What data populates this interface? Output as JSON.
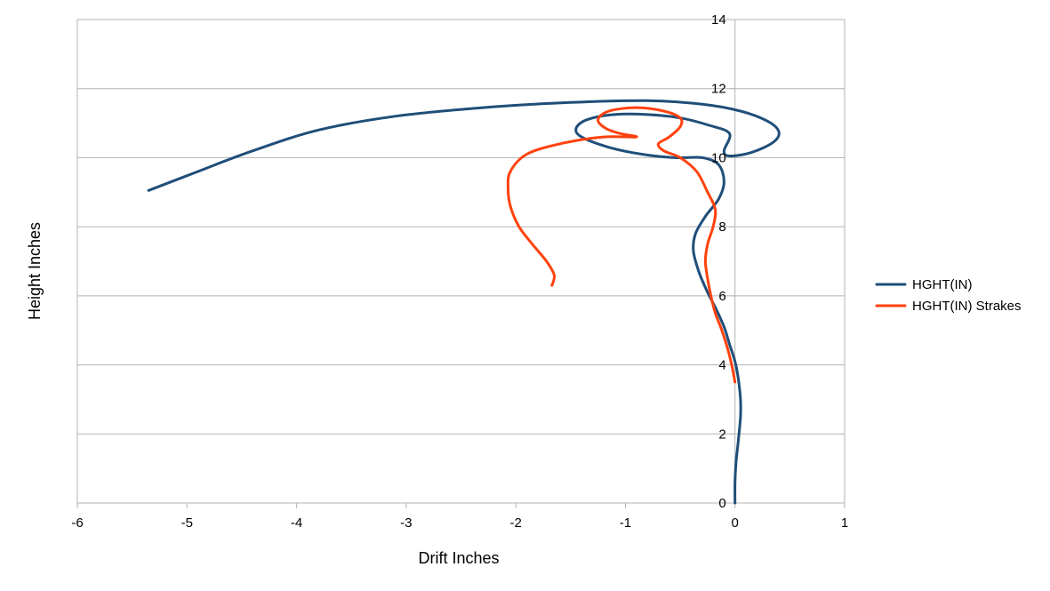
{
  "chart_data": {
    "type": "scatter",
    "title": "",
    "xlabel": "Drift Inches",
    "ylabel": "Height Inches",
    "xlim": [
      -6,
      1
    ],
    "ylim": [
      0,
      14
    ],
    "x_ticks": [
      "-6",
      "-5",
      "-4",
      "-3",
      "-2",
      "-1",
      "0",
      "1"
    ],
    "y_ticks": [
      "0",
      "2",
      "4",
      "6",
      "8",
      "10",
      "12",
      "14"
    ],
    "grid": "horizontal",
    "legend_position": "right",
    "series": [
      {
        "name": "HGHT(IN)",
        "color": "#1f4e79",
        "points": [
          [
            0.0,
            0.0
          ],
          [
            0.0,
            0.6
          ],
          [
            0.01,
            1.2
          ],
          [
            0.03,
            1.8
          ],
          [
            0.05,
            2.5
          ],
          [
            0.05,
            3.0
          ],
          [
            0.03,
            3.6
          ],
          [
            0.0,
            4.1
          ],
          [
            -0.05,
            4.6
          ],
          [
            -0.1,
            5.1
          ],
          [
            -0.17,
            5.6
          ],
          [
            -0.25,
            6.1
          ],
          [
            -0.33,
            6.7
          ],
          [
            -0.38,
            7.3
          ],
          [
            -0.36,
            7.8
          ],
          [
            -0.27,
            8.3
          ],
          [
            -0.15,
            8.8
          ],
          [
            -0.1,
            9.3
          ],
          [
            -0.15,
            9.8
          ],
          [
            -0.3,
            10.0
          ],
          [
            -0.55,
            10.0
          ],
          [
            -0.85,
            10.1
          ],
          [
            -1.15,
            10.3
          ],
          [
            -1.4,
            10.6
          ],
          [
            -1.45,
            10.85
          ],
          [
            -1.35,
            11.1
          ],
          [
            -1.1,
            11.25
          ],
          [
            -0.8,
            11.25
          ],
          [
            -0.5,
            11.15
          ],
          [
            -0.25,
            10.95
          ],
          [
            -0.05,
            10.7
          ],
          [
            -0.1,
            10.2
          ],
          [
            -0.05,
            10.05
          ],
          [
            0.15,
            10.15
          ],
          [
            0.35,
            10.45
          ],
          [
            0.4,
            10.75
          ],
          [
            0.3,
            11.05
          ],
          [
            0.05,
            11.35
          ],
          [
            -0.3,
            11.55
          ],
          [
            -0.8,
            11.65
          ],
          [
            -1.5,
            11.6
          ],
          [
            -2.3,
            11.45
          ],
          [
            -3.1,
            11.2
          ],
          [
            -3.8,
            10.8
          ],
          [
            -4.4,
            10.2
          ],
          [
            -4.9,
            9.6
          ],
          [
            -5.35,
            9.05
          ]
        ]
      },
      {
        "name": "HGHT(IN) Strakes",
        "color": "#ff420e",
        "points": [
          [
            0.0,
            3.5
          ],
          [
            -0.03,
            4.0
          ],
          [
            -0.07,
            4.5
          ],
          [
            -0.12,
            5.0
          ],
          [
            -0.18,
            5.5
          ],
          [
            -0.22,
            6.0
          ],
          [
            -0.25,
            6.5
          ],
          [
            -0.27,
            7.0
          ],
          [
            -0.25,
            7.5
          ],
          [
            -0.2,
            8.0
          ],
          [
            -0.18,
            8.5
          ],
          [
            -0.25,
            9.0
          ],
          [
            -0.35,
            9.6
          ],
          [
            -0.5,
            10.0
          ],
          [
            -0.65,
            10.2
          ],
          [
            -0.7,
            10.4
          ],
          [
            -0.6,
            10.6
          ],
          [
            -0.5,
            10.9
          ],
          [
            -0.5,
            11.15
          ],
          [
            -0.65,
            11.35
          ],
          [
            -0.9,
            11.45
          ],
          [
            -1.15,
            11.35
          ],
          [
            -1.25,
            11.1
          ],
          [
            -1.18,
            10.85
          ],
          [
            -1.05,
            10.7
          ],
          [
            -0.9,
            10.6
          ],
          [
            -1.2,
            10.6
          ],
          [
            -1.6,
            10.4
          ],
          [
            -1.9,
            10.1
          ],
          [
            -2.05,
            9.6
          ],
          [
            -2.07,
            9.1
          ],
          [
            -2.05,
            8.6
          ],
          [
            -1.97,
            8.0
          ],
          [
            -1.85,
            7.5
          ],
          [
            -1.72,
            7.0
          ],
          [
            -1.65,
            6.6
          ],
          [
            -1.67,
            6.3
          ]
        ]
      }
    ]
  }
}
